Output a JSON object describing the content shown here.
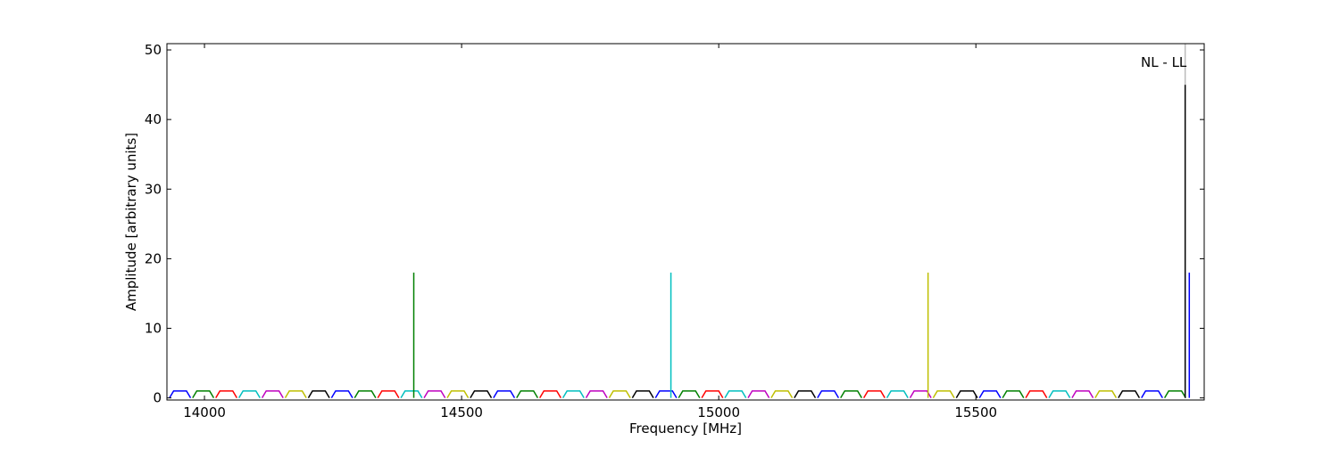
{
  "chart_data": {
    "type": "line",
    "xlabel": "Frequency [MHz]",
    "ylabel": "Amplitude [arbitrary units]",
    "xlim": [
      13927,
      15944
    ],
    "ylim": [
      -0.3,
      50.9
    ],
    "xticks": [
      14000,
      14500,
      15000,
      15500
    ],
    "yticks": [
      0,
      10,
      20,
      30,
      40,
      50
    ],
    "series": [
      {
        "color": "#0000ff",
        "x": [
          13932,
          13940,
          13965,
          13973,
          null,
          14247,
          14255,
          14280,
          14288,
          null,
          14562,
          14570,
          14595,
          14603,
          null,
          14877,
          14885,
          14910,
          14918,
          null,
          15192,
          15200,
          15225,
          15233,
          null,
          15507,
          15515,
          15540,
          15548,
          null,
          15822,
          15830,
          15855,
          15863
        ],
        "values": [
          0,
          1,
          1,
          0,
          null,
          0,
          1,
          1,
          0,
          null,
          0,
          1,
          1,
          0,
          null,
          0,
          1,
          1,
          0,
          null,
          0,
          1,
          1,
          0,
          null,
          0,
          1,
          1,
          0,
          null,
          0,
          1,
          1,
          0
        ]
      },
      {
        "color": "#008000",
        "x": [
          13977,
          13985,
          14010,
          14018,
          null,
          14292,
          14300,
          14325,
          14333,
          null,
          14607,
          14615,
          14640,
          14648,
          null,
          14922,
          14930,
          14955,
          14963,
          null,
          15237,
          15245,
          15270,
          15278,
          null,
          15552,
          15560,
          15585,
          15593,
          null,
          15867,
          15875,
          15900,
          15908
        ],
        "values": [
          0,
          1,
          1,
          0,
          null,
          0,
          1,
          1,
          0,
          null,
          0,
          1,
          1,
          0,
          null,
          0,
          1,
          1,
          0,
          null,
          0,
          1,
          1,
          0,
          null,
          0,
          1,
          1,
          0,
          null,
          0,
          1,
          1,
          0
        ]
      },
      {
        "color": "#ff0000",
        "x": [
          14022,
          14030,
          14055,
          14063,
          null,
          14337,
          14345,
          14370,
          14378,
          null,
          14652,
          14660,
          14685,
          14693,
          null,
          14967,
          14975,
          15000,
          15008,
          null,
          15282,
          15290,
          15315,
          15323,
          null,
          15597,
          15605,
          15630,
          15638
        ],
        "values": [
          0,
          1,
          1,
          0,
          null,
          0,
          1,
          1,
          0,
          null,
          0,
          1,
          1,
          0,
          null,
          0,
          1,
          1,
          0,
          null,
          0,
          1,
          1,
          0,
          null,
          0,
          1,
          1,
          0
        ]
      },
      {
        "color": "#00bfbf",
        "x": [
          14067,
          14075,
          14100,
          14108,
          null,
          14382,
          14390,
          14415,
          14423,
          null,
          14697,
          14705,
          14730,
          14738,
          null,
          15012,
          15020,
          15045,
          15053,
          null,
          15327,
          15335,
          15360,
          15368,
          null,
          15642,
          15650,
          15675,
          15683
        ],
        "values": [
          0,
          1,
          1,
          0,
          null,
          0,
          1,
          1,
          0,
          null,
          0,
          1,
          1,
          0,
          null,
          0,
          1,
          1,
          0,
          null,
          0,
          1,
          1,
          0,
          null,
          0,
          1,
          1,
          0
        ]
      },
      {
        "color": "#bf00bf",
        "x": [
          14112,
          14120,
          14145,
          14153,
          null,
          14427,
          14435,
          14460,
          14468,
          null,
          14742,
          14750,
          14775,
          14783,
          null,
          15057,
          15065,
          15090,
          15098,
          null,
          15372,
          15380,
          15405,
          15413,
          null,
          15687,
          15695,
          15720,
          15728
        ],
        "values": [
          0,
          1,
          1,
          0,
          null,
          0,
          1,
          1,
          0,
          null,
          0,
          1,
          1,
          0,
          null,
          0,
          1,
          1,
          0,
          null,
          0,
          1,
          1,
          0,
          null,
          0,
          1,
          1,
          0
        ]
      },
      {
        "color": "#bfbf00",
        "x": [
          14157,
          14165,
          14190,
          14198,
          null,
          14472,
          14480,
          14505,
          14513,
          null,
          14787,
          14795,
          14820,
          14828,
          null,
          15102,
          15110,
          15135,
          15143,
          null,
          15417,
          15425,
          15450,
          15458,
          null,
          15732,
          15740,
          15765,
          15773
        ],
        "values": [
          0,
          1,
          1,
          0,
          null,
          0,
          1,
          1,
          0,
          null,
          0,
          1,
          1,
          0,
          null,
          0,
          1,
          1,
          0,
          null,
          0,
          1,
          1,
          0,
          null,
          0,
          1,
          1,
          0
        ]
      },
      {
        "color": "#000000",
        "x": [
          14202,
          14210,
          14235,
          14243,
          null,
          14517,
          14525,
          14550,
          14558,
          null,
          14832,
          14840,
          14865,
          14873,
          null,
          15147,
          15155,
          15180,
          15188,
          null,
          15462,
          15470,
          15495,
          15503,
          null,
          15777,
          15785,
          15810,
          15818
        ],
        "values": [
          0,
          1,
          1,
          0,
          null,
          0,
          1,
          1,
          0,
          null,
          0,
          1,
          1,
          0,
          null,
          0,
          1,
          1,
          0,
          null,
          0,
          1,
          1,
          0,
          null,
          0,
          1,
          1,
          0
        ]
      }
    ],
    "peaks": {
      "x": [
        14407,
        14907,
        15407,
        15907,
        15915
      ],
      "values": [
        18,
        18,
        18,
        45,
        18
      ],
      "colors": [
        "#008000",
        "#00bfbf",
        "#bfbf00",
        "#000000",
        "#0000ff"
      ]
    },
    "annotation": {
      "text": "NL - LL",
      "x": 15907
    }
  }
}
